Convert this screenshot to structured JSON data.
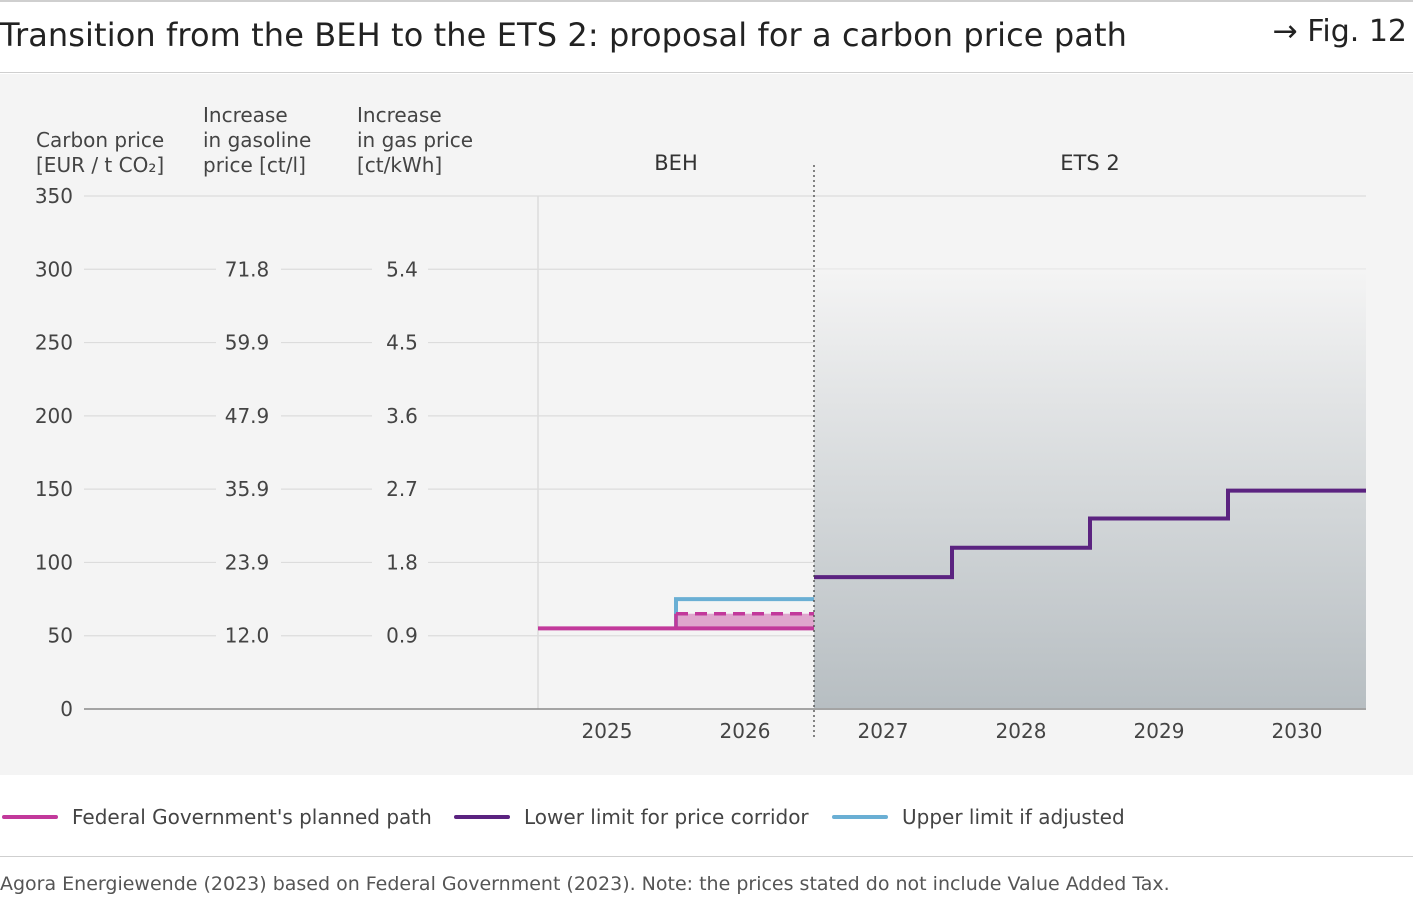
{
  "header": {
    "title": "Transition from the BEH to the ETS 2: proposal for a carbon price path",
    "fig_label": "→ Fig. 12"
  },
  "colors": {
    "planned_path": "#c2399b",
    "lower_limit": "#5b2380",
    "upper_limit": "#6aafd4",
    "corridor_top": "#f4f4f4",
    "corridor_bottom": "#b7bec2",
    "panel_bg": "#f4f4f4"
  },
  "chart_data": {
    "type": "line",
    "title": "Transition from the BEH to the ETS 2: proposal for a carbon price path",
    "axis_headers": {
      "carbon": [
        "Carbon price",
        "[EUR / t CO₂]"
      ],
      "gasoline": [
        "Increase",
        "in gasoline",
        "price [ct/l]"
      ],
      "gas": [
        "Increase",
        "in gas price",
        "[ct/kWh]"
      ]
    },
    "ylim": [
      0,
      350
    ],
    "y_ticks": [
      0,
      50,
      100,
      150,
      200,
      250,
      300,
      350
    ],
    "gasoline_ticks": [
      {
        "at": 50,
        "label": "12.0"
      },
      {
        "at": 100,
        "label": "23.9"
      },
      {
        "at": 150,
        "label": "35.9"
      },
      {
        "at": 200,
        "label": "47.9"
      },
      {
        "at": 250,
        "label": "59.9"
      },
      {
        "at": 300,
        "label": "71.8"
      }
    ],
    "gas_ticks": [
      {
        "at": 50,
        "label": "0.9"
      },
      {
        "at": 100,
        "label": "1.8"
      },
      {
        "at": 150,
        "label": "2.7"
      },
      {
        "at": 200,
        "label": "3.6"
      },
      {
        "at": 250,
        "label": "4.5"
      },
      {
        "at": 300,
        "label": "5.4"
      }
    ],
    "years": [
      "2025",
      "2026",
      "2027",
      "2028",
      "2029",
      "2030"
    ],
    "xlim": [
      2024.5,
      2030.5
    ],
    "grid": true,
    "sections": [
      {
        "label": "BEH",
        "from": 2024.5,
        "to": 2026.5
      },
      {
        "label": "ETS 2",
        "from": 2026.5,
        "to": 2030.5
      }
    ],
    "divider_at": 2026.5,
    "series": [
      {
        "name": "Federal Government's planned path",
        "key": "planned",
        "steps": [
          {
            "from": 2024.5,
            "to": 2026.5,
            "value": 55
          }
        ]
      },
      {
        "name": "Lower limit for price corridor",
        "key": "lower",
        "steps": [
          {
            "from": 2026.5,
            "to": 2027.5,
            "value": 90
          },
          {
            "from": 2027.5,
            "to": 2028.5,
            "value": 110
          },
          {
            "from": 2028.5,
            "to": 2029.5,
            "value": 130
          },
          {
            "from": 2029.5,
            "to": 2030.5,
            "value": 149
          }
        ]
      },
      {
        "name": "Upper limit if adjusted",
        "key": "upper",
        "steps": [
          {
            "from": 2025.5,
            "to": 2026.5,
            "value": 75
          }
        ]
      }
    ],
    "beh_corridor_2026": {
      "from": 2025.5,
      "to": 2026.5,
      "low": 55,
      "high": 65,
      "dashed_at": 65
    },
    "ets_corridor": {
      "from": 2026.5,
      "to": 2030.5,
      "top": 300
    }
  },
  "legend": {
    "planned_label": "Federal Government's planned path",
    "lower_label": "Lower limit for price corridor",
    "upper_label": "Upper limit if adjusted"
  },
  "footer": {
    "source": "Agora Energiewende (2023) based on Federal Government (2023). Note: the prices stated do not include Value Added Tax."
  }
}
